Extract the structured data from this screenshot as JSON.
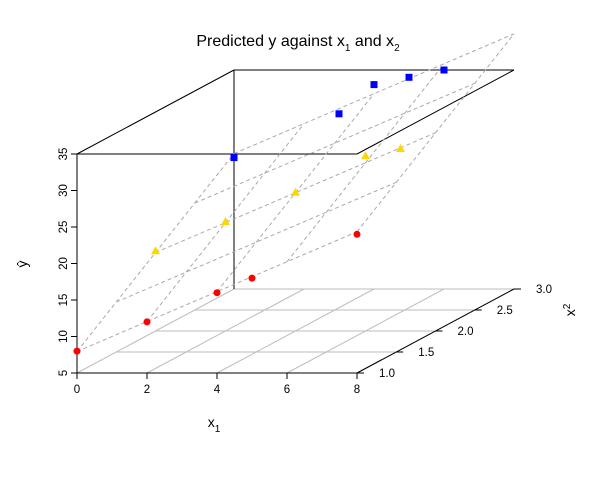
{
  "chart_data": {
    "type": "scatter3d",
    "title": {
      "main": "Predicted y against x",
      "sub1": "1",
      "mid": " and x",
      "sub2": "2"
    },
    "xlabel": {
      "main": "x",
      "sub": "1"
    },
    "ylabel": "ŷ",
    "zlabel": {
      "main": "x",
      "sub": "2"
    },
    "x1_ticks": [
      "0",
      "2",
      "4",
      "6",
      "8"
    ],
    "y_ticks": [
      "5",
      "10",
      "15",
      "20",
      "25",
      "30",
      "35"
    ],
    "x2_ticks": [
      "1.0",
      "1.5",
      "2.0",
      "2.5",
      "3.0"
    ],
    "x1_range": [
      0,
      8
    ],
    "y_range": [
      5,
      35
    ],
    "x2_range": [
      1,
      3
    ],
    "series": [
      {
        "marker": "circle",
        "color": "#ff0000",
        "x1": [
          0,
          2,
          4,
          5,
          8
        ],
        "x2": [
          1,
          1,
          1,
          1,
          1
        ],
        "y": [
          8,
          12,
          16,
          18,
          24
        ]
      },
      {
        "marker": "triangle",
        "color": "#ffd700",
        "x1": [
          0,
          2,
          4,
          6,
          7
        ],
        "x2": [
          2,
          2,
          2,
          2,
          2
        ],
        "y": [
          16,
          20,
          24,
          29,
          30
        ]
      },
      {
        "marker": "square",
        "color": "#0000ff",
        "x1": [
          0,
          3,
          4,
          5,
          6
        ],
        "x2": [
          3,
          3,
          3,
          3,
          3
        ],
        "y": [
          23,
          29,
          33,
          34,
          35
        ]
      }
    ],
    "surface_color": "#a9a9a9",
    "floor_grid_color": "#bebebe"
  }
}
